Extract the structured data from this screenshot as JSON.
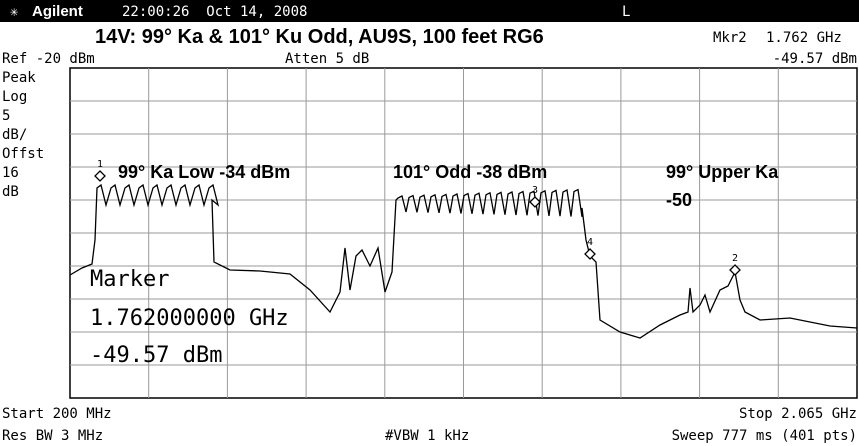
{
  "header": {
    "brand": "Agilent",
    "datetime": "22:00:26  Oct 14, 2008",
    "mode": "L"
  },
  "title": "14V: 99° Ka & 101° Ku Odd, AU9S, 100 feet RG6",
  "marker_readout": {
    "label": "Mkr2",
    "frequency": "1.762 GHz",
    "amplitude": "-49.57 dBm"
  },
  "ref_level": "Ref -20 dBm",
  "attenuation": "Atten 5 dB",
  "scale_labels": [
    "Peak",
    "Log",
    "5",
    "dB/",
    "Offst",
    "16",
    "dB"
  ],
  "annotations": [
    "99° Ka Low -34 dBm",
    "101° Odd -38 dBm",
    "99° Upper Ka",
    "-50"
  ],
  "marker_box": [
    "Marker",
    "1.762000000 GHz",
    "-49.57 dBm"
  ],
  "marker_ids": [
    "1",
    "2",
    "3",
    "4"
  ],
  "footer": {
    "start": "Start 200 MHz",
    "stop": "Stop 2.065 GHz",
    "res_bw": "Res BW 3 MHz",
    "vbw": "#VBW 1 kHz",
    "sweep": "Sweep 777 ms (401 pts)"
  }
}
